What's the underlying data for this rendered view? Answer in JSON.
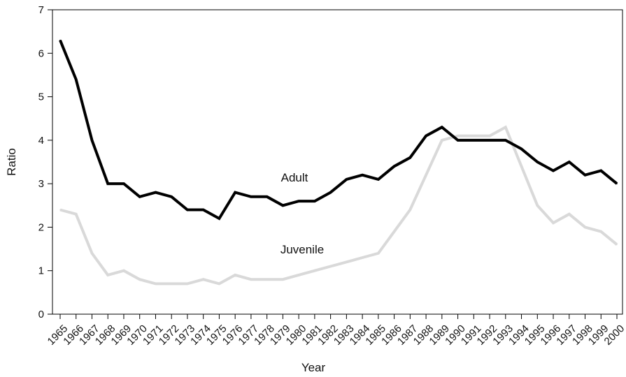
{
  "chart_data": {
    "type": "line",
    "title": "",
    "xlabel": "Year",
    "ylabel": "Ratio",
    "ylim": [
      0,
      7
    ],
    "yticks": [
      "0",
      "1",
      "2",
      "3",
      "4",
      "5",
      "6",
      "7"
    ],
    "x": [
      "1965",
      "1966",
      "1967",
      "1968",
      "1969",
      "1970",
      "1971",
      "1972",
      "1973",
      "1974",
      "1975",
      "1976",
      "1977",
      "1978",
      "1979",
      "1980",
      "1981",
      "1982",
      "1983",
      "1984",
      "1985",
      "1986",
      "1987",
      "1988",
      "1989",
      "1990",
      "1991",
      "1992",
      "1993",
      "1994",
      "1995",
      "1996",
      "1997",
      "1998",
      "1999",
      "2000"
    ],
    "grid": false,
    "legend": "none",
    "series": [
      {
        "name": "Adult",
        "color": "#000000",
        "values": [
          6.3,
          5.4,
          4.0,
          3.0,
          3.0,
          2.7,
          2.8,
          2.7,
          2.4,
          2.4,
          2.2,
          2.8,
          2.7,
          2.7,
          2.5,
          2.6,
          2.6,
          2.8,
          3.1,
          3.2,
          3.1,
          3.4,
          3.6,
          4.1,
          4.3,
          4.0,
          4.0,
          4.0,
          4.0,
          3.8,
          3.5,
          3.3,
          3.5,
          3.2,
          3.3,
          3.0
        ]
      },
      {
        "name": "Juvenile",
        "color": "#d9d9d9",
        "values": [
          2.4,
          2.3,
          1.4,
          0.9,
          1.0,
          0.8,
          0.7,
          0.7,
          0.7,
          0.8,
          0.7,
          0.9,
          0.8,
          0.8,
          0.8,
          0.9,
          1.0,
          1.1,
          1.2,
          1.3,
          1.4,
          1.9,
          2.4,
          3.2,
          4.0,
          4.1,
          4.1,
          4.1,
          4.3,
          3.4,
          2.5,
          2.1,
          2.3,
          2.0,
          1.9,
          1.6
        ]
      }
    ]
  }
}
